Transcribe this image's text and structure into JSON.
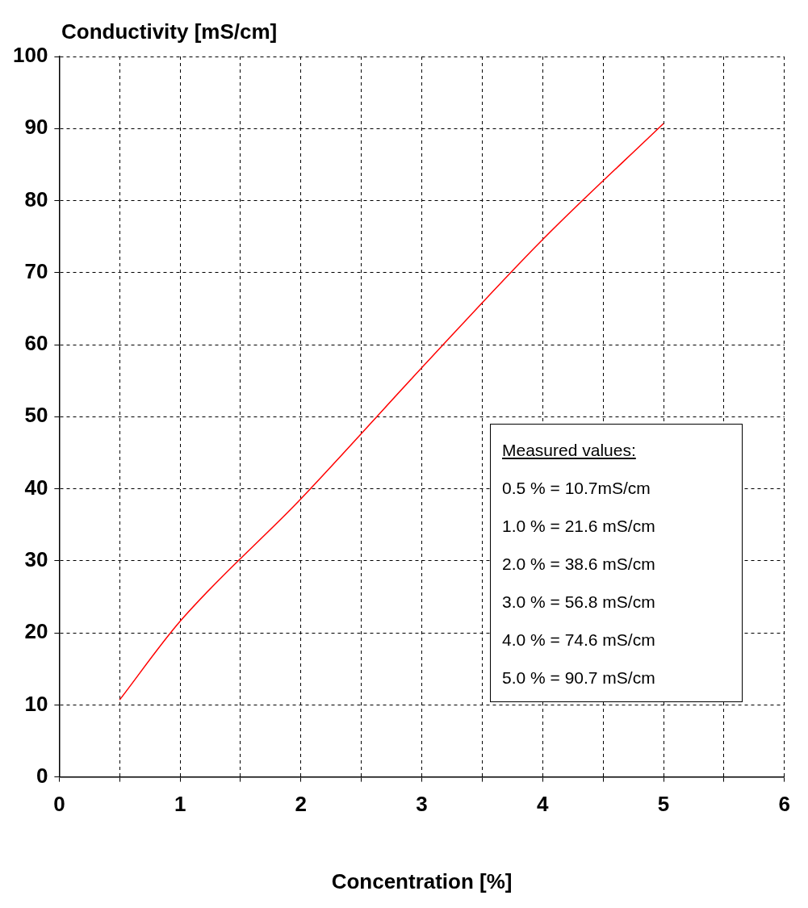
{
  "chart_data": {
    "type": "line",
    "xlabel": "Concentration [%]",
    "ylabel": "Conductivity [mS/cm]",
    "x": [
      0.5,
      1,
      2,
      3,
      4,
      5
    ],
    "series": [
      {
        "color": "#ff0000",
        "values": [
          10.7,
          21.6,
          38.6,
          56.8,
          74.6,
          90.7
        ]
      }
    ],
    "xlim": [
      0,
      6
    ],
    "xticks": [
      0,
      {
        "value": 0.5,
        "label": null
      },
      1,
      {
        "value": 1.5,
        "label": null
      },
      2,
      {
        "value": 2.5,
        "label": null
      },
      3,
      {
        "value": 3.5,
        "label": null
      },
      4,
      {
        "value": 4.5,
        "label": null
      },
      5,
      {
        "value": 5.5,
        "label": null
      },
      6
    ],
    "ylim": [
      0,
      100
    ],
    "yticks": [
      0,
      10,
      20,
      30,
      40,
      50,
      60,
      70,
      80,
      90,
      100
    ],
    "grid": true,
    "legend": false,
    "marker": "none",
    "line_style": "solid",
    "annotations": [
      "Measured values:",
      "0.5 % = 10.7mS/cm",
      "1.0 % = 21.6 mS/cm",
      "2.0 % = 38.6 mS/cm",
      "3.0 % = 56.8 mS/cm",
      "4.0 % = 74.6 mS/cm",
      "5.0 % = 90.7 mS/cm"
    ]
  }
}
